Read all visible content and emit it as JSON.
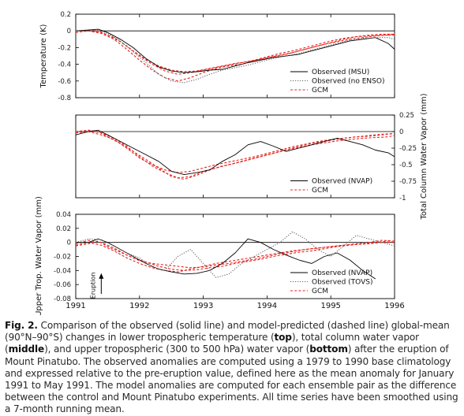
{
  "chart_data": [
    {
      "type": "line",
      "panel": "top",
      "ylabel": "Temperature (K)",
      "xlim": [
        1991,
        1996
      ],
      "ylim": [
        -0.8,
        0.2
      ],
      "yticks": [
        "0.2",
        "0",
        "-0.2",
        "-0.4",
        "-0.6",
        "-0.8"
      ],
      "ytick_values": [
        0.2,
        0,
        -0.2,
        -0.4,
        -0.6,
        -0.8
      ],
      "legend_position": "bottom-right",
      "series": [
        {
          "name": "Observed (MSU)",
          "style": "solid",
          "color": "#000000",
          "x": [
            1991.0,
            1991.2,
            1991.35,
            1991.5,
            1991.7,
            1991.9,
            1992.1,
            1992.3,
            1992.5,
            1992.7,
            1992.9,
            1993.1,
            1993.3,
            1993.5,
            1993.7,
            1993.9,
            1994.1,
            1994.3,
            1994.5,
            1994.7,
            1994.9,
            1995.1,
            1995.3,
            1995.5,
            1995.7,
            1995.9,
            1996.0
          ],
          "y": [
            0.0,
            0.01,
            0.02,
            -0.02,
            -0.1,
            -0.2,
            -0.33,
            -0.43,
            -0.48,
            -0.5,
            -0.49,
            -0.47,
            -0.46,
            -0.42,
            -0.38,
            -0.35,
            -0.32,
            -0.3,
            -0.28,
            -0.24,
            -0.2,
            -0.16,
            -0.12,
            -0.1,
            -0.08,
            -0.15,
            -0.22
          ]
        },
        {
          "name": "Observed (no ENSO)",
          "style": "dotted",
          "color": "#666666",
          "x": [
            1991.0,
            1991.2,
            1991.35,
            1991.5,
            1991.7,
            1991.9,
            1992.1,
            1992.3,
            1992.5,
            1992.7,
            1992.9,
            1993.1,
            1993.3,
            1993.5,
            1993.7,
            1993.9,
            1994.1,
            1994.3,
            1994.5,
            1994.7,
            1994.9,
            1995.1,
            1995.3,
            1995.5,
            1995.7,
            1995.9,
            1996.0
          ],
          "y": [
            0.0,
            0.0,
            0.01,
            -0.03,
            -0.12,
            -0.25,
            -0.38,
            -0.52,
            -0.6,
            -0.62,
            -0.58,
            -0.52,
            -0.47,
            -0.44,
            -0.41,
            -0.37,
            -0.33,
            -0.3,
            -0.27,
            -0.23,
            -0.19,
            -0.15,
            -0.11,
            -0.09,
            -0.08,
            -0.08,
            -0.1
          ]
        },
        {
          "name": "GCM",
          "style": "dashed",
          "color": "#e8231f",
          "x": [
            1991.0,
            1991.2,
            1991.35,
            1991.5,
            1991.7,
            1991.9,
            1992.1,
            1992.3,
            1992.5,
            1992.7,
            1992.9,
            1993.1,
            1993.3,
            1993.5,
            1993.7,
            1993.9,
            1994.1,
            1994.3,
            1994.5,
            1994.7,
            1994.9,
            1995.1,
            1995.3,
            1995.5,
            1995.7,
            1995.9,
            1996.0
          ],
          "y": [
            0.0,
            0.01,
            0.0,
            -0.05,
            -0.13,
            -0.24,
            -0.34,
            -0.42,
            -0.47,
            -0.49,
            -0.48,
            -0.45,
            -0.42,
            -0.39,
            -0.37,
            -0.34,
            -0.31,
            -0.28,
            -0.24,
            -0.2,
            -0.16,
            -0.13,
            -0.1,
            -0.08,
            -0.06,
            -0.05,
            -0.04
          ]
        },
        {
          "name": "",
          "style": "dashed",
          "color": "#e8231f",
          "x": [
            1991.0,
            1991.2,
            1991.4,
            1991.6,
            1991.8,
            1992.0,
            1992.2,
            1992.4,
            1992.6,
            1992.8,
            1993.0,
            1993.2,
            1993.4,
            1993.6,
            1993.8,
            1994.0,
            1994.2,
            1994.4,
            1994.6,
            1994.8,
            1995.0,
            1995.2,
            1995.4,
            1995.6,
            1995.8,
            1996.0
          ],
          "y": [
            0.0,
            0.0,
            -0.03,
            -0.1,
            -0.22,
            -0.35,
            -0.47,
            -0.56,
            -0.6,
            -0.56,
            -0.5,
            -0.45,
            -0.42,
            -0.4,
            -0.36,
            -0.32,
            -0.29,
            -0.26,
            -0.22,
            -0.18,
            -0.14,
            -0.1,
            -0.07,
            -0.05,
            -0.04,
            -0.04
          ]
        },
        {
          "name": "",
          "style": "dashed",
          "color": "#e8231f",
          "x": [
            1991.0,
            1991.2,
            1991.4,
            1991.6,
            1991.8,
            1992.0,
            1992.2,
            1992.4,
            1992.6,
            1992.8,
            1993.0,
            1993.2,
            1993.4,
            1993.6,
            1993.8,
            1994.0,
            1994.2,
            1994.4,
            1994.6,
            1994.8,
            1995.0,
            1995.2,
            1995.4,
            1995.6,
            1995.8,
            1996.0
          ],
          "y": [
            -0.02,
            0.0,
            -0.02,
            -0.08,
            -0.18,
            -0.3,
            -0.4,
            -0.48,
            -0.52,
            -0.5,
            -0.47,
            -0.44,
            -0.41,
            -0.38,
            -0.35,
            -0.31,
            -0.27,
            -0.24,
            -0.2,
            -0.16,
            -0.12,
            -0.09,
            -0.07,
            -0.06,
            -0.05,
            -0.05
          ]
        }
      ],
      "legend": [
        "Observed (MSU)",
        "Observed (no ENSO)",
        "GCM"
      ]
    },
    {
      "type": "line",
      "panel": "middle",
      "ylabel": "Total Column Water Vapor (mm)",
      "xlim": [
        1991,
        1996
      ],
      "ylim": [
        -1.0,
        0.25
      ],
      "yticks": [
        "0.25",
        "0",
        "-0.25",
        "-0.5",
        "-0.75",
        "-1"
      ],
      "ytick_values": [
        0.25,
        0,
        -0.25,
        -0.5,
        -0.75,
        -1.0
      ],
      "legend_position": "bottom-right",
      "series": [
        {
          "name": "Observed (NVAP)",
          "style": "solid",
          "color": "#000000",
          "x": [
            1991.0,
            1991.2,
            1991.35,
            1991.5,
            1991.7,
            1991.9,
            1992.1,
            1992.3,
            1992.5,
            1992.7,
            1992.9,
            1993.1,
            1993.3,
            1993.5,
            1993.7,
            1993.9,
            1994.1,
            1994.3,
            1994.5,
            1994.7,
            1994.9,
            1995.1,
            1995.3,
            1995.5,
            1995.7,
            1995.9,
            1996.0
          ],
          "y": [
            -0.05,
            0.0,
            0.02,
            -0.05,
            -0.15,
            -0.25,
            -0.35,
            -0.45,
            -0.6,
            -0.65,
            -0.62,
            -0.58,
            -0.45,
            -0.35,
            -0.2,
            -0.15,
            -0.22,
            -0.3,
            -0.25,
            -0.2,
            -0.15,
            -0.1,
            -0.15,
            -0.2,
            -0.28,
            -0.32,
            -0.38
          ]
        },
        {
          "name": "GCM",
          "style": "dashed",
          "color": "#e8231f",
          "x": [
            1991.0,
            1991.2,
            1991.35,
            1991.5,
            1991.7,
            1991.9,
            1992.1,
            1992.3,
            1992.5,
            1992.7,
            1992.9,
            1993.1,
            1993.3,
            1993.5,
            1993.7,
            1993.9,
            1994.1,
            1994.3,
            1994.5,
            1994.7,
            1994.9,
            1995.1,
            1995.3,
            1995.5,
            1995.7,
            1995.9,
            1996.0
          ],
          "y": [
            -0.02,
            0.02,
            0.0,
            -0.08,
            -0.18,
            -0.3,
            -0.42,
            -0.55,
            -0.68,
            -0.72,
            -0.66,
            -0.58,
            -0.52,
            -0.48,
            -0.43,
            -0.38,
            -0.33,
            -0.28,
            -0.24,
            -0.2,
            -0.17,
            -0.14,
            -0.12,
            -0.1,
            -0.09,
            -0.08,
            -0.06
          ]
        },
        {
          "name": "",
          "style": "dashed",
          "color": "#e8231f",
          "x": [
            1991.0,
            1991.2,
            1991.4,
            1991.6,
            1991.8,
            1992.0,
            1992.2,
            1992.4,
            1992.6,
            1992.8,
            1993.0,
            1993.2,
            1993.4,
            1993.6,
            1993.8,
            1994.0,
            1994.2,
            1994.4,
            1994.6,
            1994.8,
            1995.0,
            1995.2,
            1995.4,
            1995.6,
            1995.8,
            1996.0
          ],
          "y": [
            0.0,
            0.02,
            -0.02,
            -0.1,
            -0.22,
            -0.38,
            -0.52,
            -0.62,
            -0.7,
            -0.68,
            -0.6,
            -0.55,
            -0.5,
            -0.45,
            -0.4,
            -0.35,
            -0.3,
            -0.25,
            -0.2,
            -0.16,
            -0.13,
            -0.1,
            -0.08,
            -0.07,
            -0.05,
            -0.03
          ]
        },
        {
          "name": "",
          "style": "dashed",
          "color": "#e8231f",
          "x": [
            1991.0,
            1991.2,
            1991.4,
            1991.6,
            1991.8,
            1992.0,
            1992.2,
            1992.4,
            1992.6,
            1992.8,
            1993.0,
            1993.2,
            1993.4,
            1993.6,
            1993.8,
            1994.0,
            1994.2,
            1994.4,
            1994.6,
            1994.8,
            1995.0,
            1995.2,
            1995.4,
            1995.6,
            1995.8,
            1996.0
          ],
          "y": [
            -0.02,
            0.0,
            -0.05,
            -0.12,
            -0.25,
            -0.4,
            -0.5,
            -0.58,
            -0.62,
            -0.6,
            -0.55,
            -0.5,
            -0.46,
            -0.42,
            -0.38,
            -0.33,
            -0.28,
            -0.23,
            -0.19,
            -0.15,
            -0.12,
            -0.1,
            -0.08,
            -0.06,
            -0.04,
            -0.03
          ]
        }
      ],
      "legend": [
        "Observed (NVAP)",
        "GCM"
      ]
    },
    {
      "type": "line",
      "panel": "bottom",
      "ylabel": "Upper Trop. Water Vapor (mm)",
      "xlim": [
        1991,
        1996
      ],
      "ylim": [
        -0.08,
        0.04
      ],
      "yticks": [
        "0.04",
        "0.02",
        "0",
        "-0.02",
        "-0.04",
        "-0.06",
        "-0.08"
      ],
      "ytick_values": [
        0.04,
        0.02,
        0,
        -0.02,
        -0.04,
        -0.06,
        -0.08
      ],
      "xticks": [
        "1991",
        "1992",
        "1993",
        "1994",
        "1995",
        "1996"
      ],
      "xtick_values": [
        1991,
        1992,
        1993,
        1994,
        1995,
        1996
      ],
      "legend_position": "bottom-right",
      "series": [
        {
          "name": "Observed (NVAP)",
          "style": "solid",
          "color": "#000000",
          "x": [
            1991.0,
            1991.2,
            1991.35,
            1991.5,
            1991.7,
            1991.9,
            1992.1,
            1992.3,
            1992.5,
            1992.7,
            1992.9,
            1993.1,
            1993.3,
            1993.5,
            1993.7,
            1993.9,
            1994.1,
            1994.3,
            1994.5,
            1994.7,
            1994.9,
            1995.1,
            1995.3,
            1995.5,
            1995.7
          ],
          "y": [
            0.0,
            0.0,
            0.005,
            0.0,
            -0.01,
            -0.02,
            -0.03,
            -0.038,
            -0.042,
            -0.045,
            -0.044,
            -0.04,
            -0.03,
            -0.015,
            0.005,
            0.0,
            -0.01,
            -0.018,
            -0.025,
            -0.03,
            -0.02,
            -0.015,
            -0.025,
            -0.04,
            -0.052
          ]
        },
        {
          "name": "Observed (TOVS)",
          "style": "dotted",
          "color": "#666666",
          "x": [
            1991.0,
            1991.2,
            1991.4,
            1991.6,
            1991.8,
            1992.0,
            1992.2,
            1992.4,
            1992.6,
            1992.8,
            1993.0,
            1993.2,
            1993.4,
            1993.6,
            1993.8,
            1994.0,
            1994.2,
            1994.4,
            1994.6,
            1994.8,
            1995.0,
            1995.2,
            1995.4,
            1995.6,
            1995.8,
            1996.0
          ],
          "y": [
            0.0,
            0.005,
            0.004,
            -0.005,
            -0.015,
            -0.022,
            -0.035,
            -0.04,
            -0.02,
            -0.01,
            -0.03,
            -0.05,
            -0.045,
            -0.03,
            -0.02,
            -0.01,
            0.0,
            0.015,
            0.005,
            -0.01,
            -0.02,
            -0.005,
            0.01,
            0.005,
            0.0,
            -0.005
          ]
        },
        {
          "name": "GCM",
          "style": "dashed",
          "color": "#e8231f",
          "x": [
            1991.0,
            1991.2,
            1991.35,
            1991.5,
            1991.7,
            1991.9,
            1992.1,
            1992.3,
            1992.5,
            1992.7,
            1992.9,
            1993.1,
            1993.3,
            1993.5,
            1993.7,
            1993.9,
            1994.1,
            1994.3,
            1994.5,
            1994.7,
            1994.9,
            1995.1,
            1995.3,
            1995.5,
            1995.7,
            1995.9,
            1996.0
          ],
          "y": [
            -0.005,
            -0.002,
            0.002,
            -0.006,
            -0.014,
            -0.022,
            -0.028,
            -0.034,
            -0.038,
            -0.04,
            -0.039,
            -0.036,
            -0.034,
            -0.03,
            -0.027,
            -0.024,
            -0.02,
            -0.017,
            -0.014,
            -0.012,
            -0.009,
            -0.006,
            -0.004,
            -0.002,
            0.0,
            0.002,
            0.0
          ]
        },
        {
          "name": "",
          "style": "dashed",
          "color": "#e8231f",
          "x": [
            1991.0,
            1991.2,
            1991.4,
            1991.6,
            1991.8,
            1992.0,
            1992.2,
            1992.4,
            1992.6,
            1992.8,
            1993.0,
            1993.2,
            1993.4,
            1993.6,
            1993.8,
            1994.0,
            1994.2,
            1994.4,
            1994.6,
            1994.8,
            1995.0,
            1995.2,
            1995.4,
            1995.6,
            1995.8,
            1996.0
          ],
          "y": [
            -0.002,
            0.003,
            0.0,
            -0.008,
            -0.018,
            -0.026,
            -0.03,
            -0.032,
            -0.034,
            -0.036,
            -0.035,
            -0.032,
            -0.03,
            -0.027,
            -0.024,
            -0.02,
            -0.016,
            -0.013,
            -0.01,
            -0.008,
            -0.006,
            -0.004,
            -0.002,
            0.0,
            0.003,
            0.002
          ]
        },
        {
          "name": "",
          "style": "dashed",
          "color": "#e8231f",
          "x": [
            1991.0,
            1991.2,
            1991.4,
            1991.6,
            1991.8,
            1992.0,
            1992.2,
            1992.4,
            1992.6,
            1992.8,
            1993.0,
            1993.2,
            1993.4,
            1993.6,
            1993.8,
            1994.0,
            1994.2,
            1994.4,
            1994.6,
            1994.8,
            1995.0,
            1995.2,
            1995.4,
            1995.6,
            1995.8,
            1996.0
          ],
          "y": [
            -0.004,
            0.0,
            -0.004,
            -0.012,
            -0.022,
            -0.03,
            -0.036,
            -0.04,
            -0.042,
            -0.038,
            -0.034,
            -0.03,
            -0.027,
            -0.024,
            -0.021,
            -0.018,
            -0.015,
            -0.012,
            -0.01,
            -0.008,
            -0.006,
            -0.004,
            -0.003,
            -0.002,
            0.0,
            0.0
          ]
        }
      ],
      "legend": [
        "Observed (NVAP)",
        "Observed (TOVS)",
        "GCM"
      ],
      "annotation": {
        "text": "Eruption",
        "x": 1991.4,
        "arrow": true
      }
    }
  ],
  "caption": {
    "fig_label": "Fig. 2.",
    "text_1": " Comparison of the observed (solid line) and model-predicted (dashed line) global-mean (90°N–90°S) changes in lower tropospheric temperature (",
    "bold_1": "top",
    "text_2": "), total column water vapor (",
    "bold_2": "middle",
    "text_3": "), and upper tropospheric (300 to 500 hPa) water vapor (",
    "bold_3": "bottom",
    "text_4": ") after the eruption of Mount Pinatubo. The observed anomalies are computed using a 1979 to 1990 base climatology and expressed relative to the pre-eruption value, defined here as the mean anomaly for January 1991 to May 1991. The model anomalies are computed for each ensemble pair as the difference between the control and Mount Pinatubo experiments. All time series have been smoothed using a 7-month running mean."
  },
  "colors": {
    "observed": "#000000",
    "observed_alt": "#666666",
    "gcm": "#e8231f"
  }
}
